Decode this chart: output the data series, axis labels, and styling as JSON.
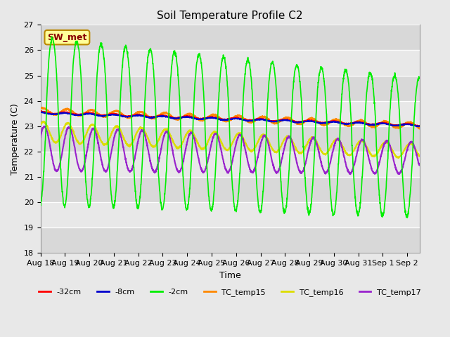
{
  "title": "Soil Temperature Profile C2",
  "xlabel": "Time",
  "ylabel": "Temperature (C)",
  "ylim": [
    18.0,
    27.0
  ],
  "yticks": [
    18.0,
    19.0,
    20.0,
    21.0,
    22.0,
    23.0,
    24.0,
    25.0,
    26.0,
    27.0
  ],
  "plot_bg": "#d8d8d8",
  "fig_bg": "#e8e8e8",
  "band_colors": [
    "#d8d8d8",
    "#e8e8e8"
  ],
  "annotation_text": "SW_met",
  "annotation_bg": "#ffff99",
  "annotation_border": "#bb8800",
  "annotation_text_color": "#880000",
  "line_32cm_color": "#ff0000",
  "line_8cm_color": "#0000cc",
  "line_2cm_color": "#00ee00",
  "line_tc15_color": "#ff8800",
  "line_tc16_color": "#dddd00",
  "line_tc17_color": "#9922cc",
  "line_lw": 1.2,
  "n_days": 15.5,
  "xtick_labels": [
    "Aug 18",
    "Aug 19",
    "Aug 20",
    "Aug 21",
    "Aug 22",
    "Aug 23",
    "Aug 24",
    "Aug 25",
    "Aug 26",
    "Aug 27",
    "Aug 28",
    "Aug 29",
    "Aug 30",
    "Aug 31",
    "Sep 1",
    "Sep 2"
  ],
  "legend_items": [
    "-32cm",
    "-8cm",
    "-2cm",
    "TC_temp15",
    "TC_temp16",
    "TC_temp17"
  ]
}
